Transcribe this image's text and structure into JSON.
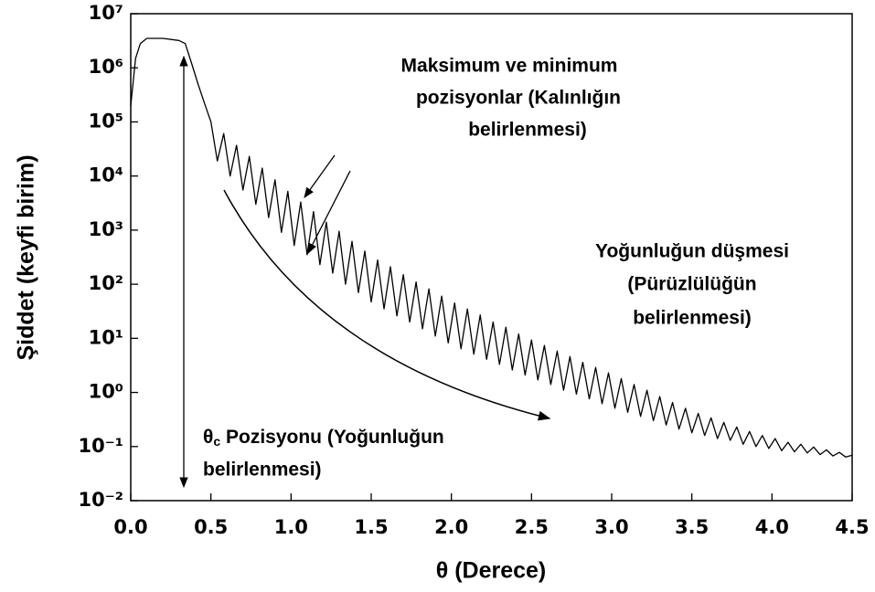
{
  "chart_data": {
    "type": "line",
    "log_y": true,
    "color": "#000000",
    "x_label": "θ (Derece)",
    "y_label": "Şiddet (keyfi birim)",
    "xlim": [
      0,
      4.5
    ],
    "ylim": [
      0.01,
      10000000
    ],
    "xticks": [
      {
        "value": 0,
        "label": "0.0"
      },
      0.5,
      {
        "value": 1,
        "label": "1.0"
      },
      1.5,
      {
        "value": 2,
        "label": "2.0"
      },
      2.5,
      {
        "value": 3,
        "label": "3.0"
      },
      3.5,
      {
        "value": 4,
        "label": "4.0"
      },
      4.5
    ],
    "yticks": [
      {
        "value": 0.01,
        "label": "10⁻²"
      },
      {
        "value": 0.1,
        "label": "10⁻¹"
      },
      {
        "value": 1,
        "label": "10⁰"
      },
      {
        "value": 10,
        "label": "10¹"
      },
      {
        "value": 100,
        "label": "10²"
      },
      {
        "value": 1000,
        "label": "10³"
      },
      {
        "value": 10000,
        "label": "10⁴"
      },
      {
        "value": 100000,
        "label": "10⁵"
      },
      {
        "value": 1000000,
        "label": "10⁶"
      },
      {
        "value": 10000000,
        "label": "10⁷"
      }
    ],
    "x": [
      0,
      0.03,
      0.06,
      0.1,
      0.2,
      0.3,
      0.34,
      0.38,
      0.42,
      0.46,
      0.5,
      0.54,
      0.58,
      0.62,
      0.66,
      0.7,
      0.74,
      0.78,
      0.82,
      0.86,
      0.9,
      0.94,
      0.98,
      1.02,
      1.06,
      1.1,
      1.14,
      1.18,
      1.22,
      1.26,
      1.3,
      1.34,
      1.38,
      1.42,
      1.46,
      1.5,
      1.54,
      1.58,
      1.62,
      1.66,
      1.7,
      1.74,
      1.78,
      1.82,
      1.86,
      1.9,
      1.94,
      1.98,
      2.02,
      2.06,
      2.1,
      2.14,
      2.18,
      2.22,
      2.26,
      2.3,
      2.34,
      2.38,
      2.42,
      2.46,
      2.5,
      2.54,
      2.58,
      2.62,
      2.66,
      2.7,
      2.74,
      2.78,
      2.82,
      2.86,
      2.9,
      2.94,
      2.98,
      3.02,
      3.06,
      3.1,
      3.14,
      3.18,
      3.22,
      3.26,
      3.3,
      3.34,
      3.38,
      3.42,
      3.46,
      3.5,
      3.54,
      3.58,
      3.62,
      3.66,
      3.7,
      3.74,
      3.78,
      3.82,
      3.86,
      3.9,
      3.94,
      3.98,
      4.02,
      4.06,
      4.1,
      4.14,
      4.18,
      4.22,
      4.26,
      4.3,
      4.34,
      4.38,
      4.42,
      4.46,
      4.5
    ],
    "values": [
      200000,
      1500000,
      2800000,
      3500000,
      3500000,
      3200000,
      2800000,
      1200000,
      500000,
      220000,
      100000,
      19000,
      61000,
      10000,
      37000,
      5500,
      23000,
      3000,
      14000,
      1700,
      8500,
      910,
      5200,
      520,
      3300,
      350,
      2200,
      230,
      1400,
      160,
      950,
      100,
      620,
      70,
      410,
      47,
      280,
      35,
      210,
      26,
      150,
      20,
      110,
      15,
      82,
      11,
      60,
      8.2,
      45,
      6.4,
      35,
      5.1,
      27,
      4.1,
      20,
      3.3,
      16,
      2.6,
      12,
      2.1,
      9.3,
      1.7,
      7.4,
      1.4,
      5.8,
      1.1,
      4.6,
      0.93,
      3.6,
      0.76,
      2.9,
      0.62,
      2.3,
      0.51,
      1.8,
      0.43,
      1.4,
      0.36,
      1.1,
      0.3,
      0.84,
      0.25,
      0.65,
      0.21,
      0.51,
      0.18,
      0.41,
      0.16,
      0.34,
      0.14,
      0.28,
      0.13,
      0.23,
      0.11,
      0.19,
      0.1,
      0.16,
      0.092,
      0.14,
      0.084,
      0.12,
      0.08,
      0.11,
      0.076,
      0.098,
      0.071,
      0.087,
      0.067,
      0.078,
      0.064,
      0.069
    ],
    "annotations": [
      {
        "lines": [
          "Maksimum ve minimum",
          "pozisyonlar (Kalınlığın",
          "belirlenmesi)"
        ]
      },
      {
        "lines": [
          "Yoğunluğun düşmesi",
          "(Pürüzlülüğün",
          "belirlenmesi)"
        ]
      },
      {
        "symbol": "θ",
        "subscript": "c",
        "lines": [
          " Pozisyonu (Yoğunluğun",
          "belirlenmesi)"
        ]
      }
    ]
  }
}
